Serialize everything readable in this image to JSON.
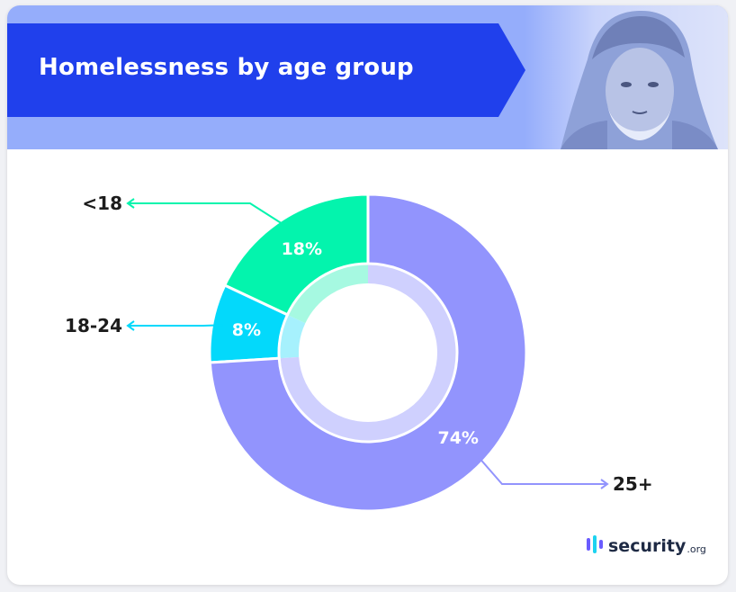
{
  "header": {
    "title": "Homelessness by age group"
  },
  "chart_data": {
    "type": "pie",
    "title": "Homelessness by age group",
    "unit": "%",
    "categories": [
      "<18",
      "18-24",
      "25+"
    ],
    "values": [
      18,
      8,
      74
    ],
    "value_labels": [
      "18%",
      "8%",
      "74%"
    ],
    "colors": [
      "#03f4ad",
      "#03d9fb",
      "#9294fd"
    ],
    "inner_colors": [
      "#a6f9e1",
      "#a6f1fd",
      "#cfd0fe"
    ],
    "donut": true
  },
  "logo": {
    "name": "security",
    "suffix": ".org",
    "colors": [
      "#6a5cff",
      "#1dd3f0",
      "#1e2a44"
    ]
  }
}
